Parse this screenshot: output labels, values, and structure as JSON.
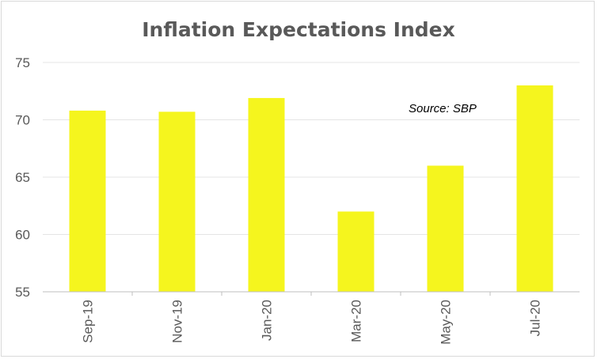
{
  "chart_data": {
    "type": "bar",
    "title": "Inflation Expectations Index",
    "categories": [
      "Sep-19",
      "Nov-19",
      "Jan-20",
      "Mar-20",
      "May-20",
      "Jul-20"
    ],
    "values": [
      70.8,
      70.7,
      71.9,
      62.0,
      66.0,
      73.0
    ],
    "xlabel": "",
    "ylabel": "",
    "ylim": [
      55,
      75
    ],
    "yticks": [
      55,
      60,
      65,
      70,
      75
    ],
    "grid": true,
    "legend": "none",
    "bar_color": "#f5f51e",
    "annotation": "Source: SBP"
  }
}
